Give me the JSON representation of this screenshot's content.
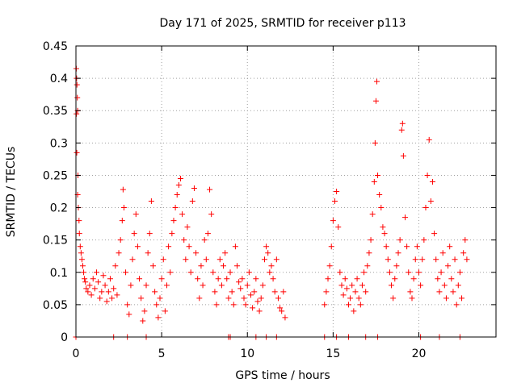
{
  "chart_data": {
    "type": "scatter",
    "title": "Day 171 of 2025, SRMTID for receiver p113",
    "xlabel": "GPS time / hours",
    "ylabel": "SRMTID / TECUs",
    "xlim": [
      0,
      24.5
    ],
    "ylim": [
      0,
      0.45
    ],
    "xticks": [
      0,
      5,
      10,
      15,
      20
    ],
    "xtick_labels": [
      "0",
      "5",
      "10",
      "15",
      "20"
    ],
    "yticks": [
      0,
      0.05,
      0.1,
      0.15,
      0.2,
      0.25,
      0.3,
      0.35,
      0.4,
      0.45
    ],
    "ytick_labels": [
      "0",
      "0.05",
      "0.1",
      "0.15",
      "0.2",
      "0.25",
      "0.3",
      "0.35",
      "0.4",
      "0.45"
    ],
    "grid": true,
    "marker": "+",
    "color": "#ff0000",
    "series": [
      {
        "name": "SRMTID",
        "points": [
          [
            0.02,
            0.415
          ],
          [
            0.04,
            0.4
          ],
          [
            0.06,
            0.39
          ],
          [
            0.08,
            0.37
          ],
          [
            0.1,
            0.35
          ],
          [
            0.03,
            0.345
          ],
          [
            0.05,
            0.285
          ],
          [
            0.12,
            0.25
          ],
          [
            0.1,
            0.22
          ],
          [
            0.14,
            0.2
          ],
          [
            0.18,
            0.18
          ],
          [
            0.2,
            0.16
          ],
          [
            0.25,
            0.14
          ],
          [
            0.3,
            0.13
          ],
          [
            0.35,
            0.12
          ],
          [
            0.4,
            0.11
          ],
          [
            0.45,
            0.1
          ],
          [
            0.5,
            0.09
          ],
          [
            0.55,
            0.085
          ],
          [
            0.6,
            0.075
          ],
          [
            0.7,
            0.07
          ],
          [
            0.8,
            0.08
          ],
          [
            0.9,
            0.065
          ],
          [
            1.0,
            0.09
          ],
          [
            1.1,
            0.075
          ],
          [
            1.2,
            0.1
          ],
          [
            1.3,
            0.085
          ],
          [
            1.4,
            0.06
          ],
          [
            1.5,
            0.07
          ],
          [
            1.6,
            0.095
          ],
          [
            1.7,
            0.08
          ],
          [
            1.8,
            0.055
          ],
          [
            1.9,
            0.07
          ],
          [
            2.0,
            0.09
          ],
          [
            2.1,
            0.06
          ],
          [
            2.2,
            0.075
          ],
          [
            2.3,
            0.11
          ],
          [
            2.4,
            0.065
          ],
          [
            2.5,
            0.13
          ],
          [
            2.6,
            0.15
          ],
          [
            2.7,
            0.18
          ],
          [
            2.75,
            0.228
          ],
          [
            2.8,
            0.2
          ],
          [
            2.9,
            0.1
          ],
          [
            3.0,
            0.05
          ],
          [
            3.1,
            0.035
          ],
          [
            3.2,
            0.08
          ],
          [
            3.3,
            0.12
          ],
          [
            3.4,
            0.16
          ],
          [
            3.5,
            0.19
          ],
          [
            3.6,
            0.14
          ],
          [
            3.7,
            0.09
          ],
          [
            3.8,
            0.06
          ],
          [
            3.9,
            0.025
          ],
          [
            4.0,
            0.04
          ],
          [
            4.1,
            0.08
          ],
          [
            4.2,
            0.13
          ],
          [
            4.3,
            0.16
          ],
          [
            4.4,
            0.21
          ],
          [
            4.5,
            0.11
          ],
          [
            4.6,
            0.07
          ],
          [
            4.7,
            0.05
          ],
          [
            4.8,
            0.03
          ],
          [
            4.9,
            0.06
          ],
          [
            5.0,
            0.09
          ],
          [
            5.1,
            0.12
          ],
          [
            5.2,
            0.04
          ],
          [
            5.3,
            0.08
          ],
          [
            5.4,
            0.14
          ],
          [
            5.5,
            0.1
          ],
          [
            5.6,
            0.16
          ],
          [
            5.7,
            0.18
          ],
          [
            5.8,
            0.2
          ],
          [
            5.9,
            0.22
          ],
          [
            6.0,
            0.235
          ],
          [
            6.1,
            0.245
          ],
          [
            6.2,
            0.19
          ],
          [
            6.3,
            0.15
          ],
          [
            6.4,
            0.12
          ],
          [
            6.5,
            0.17
          ],
          [
            6.6,
            0.14
          ],
          [
            6.7,
            0.1
          ],
          [
            6.8,
            0.21
          ],
          [
            6.9,
            0.23
          ],
          [
            7.0,
            0.13
          ],
          [
            7.1,
            0.09
          ],
          [
            7.2,
            0.06
          ],
          [
            7.3,
            0.11
          ],
          [
            7.4,
            0.08
          ],
          [
            7.5,
            0.15
          ],
          [
            7.6,
            0.12
          ],
          [
            7.7,
            0.16
          ],
          [
            7.8,
            0.228
          ],
          [
            7.9,
            0.19
          ],
          [
            8.0,
            0.1
          ],
          [
            8.1,
            0.07
          ],
          [
            8.2,
            0.05
          ],
          [
            8.3,
            0.09
          ],
          [
            8.4,
            0.12
          ],
          [
            8.5,
            0.08
          ],
          [
            8.6,
            0.11
          ],
          [
            8.7,
            0.13
          ],
          [
            8.8,
            0.09
          ],
          [
            8.9,
            0.06
          ],
          [
            9.0,
            0.1
          ],
          [
            9.1,
            0.07
          ],
          [
            9.2,
            0.05
          ],
          [
            9.3,
            0.14
          ],
          [
            9.4,
            0.11
          ],
          [
            9.5,
            0.085
          ],
          [
            9.6,
            0.075
          ],
          [
            9.7,
            0.09
          ],
          [
            9.8,
            0.06
          ],
          [
            9.9,
            0.05
          ],
          [
            10.0,
            0.08
          ],
          [
            10.1,
            0.1
          ],
          [
            10.2,
            0.065
          ],
          [
            10.3,
            0.045
          ],
          [
            10.4,
            0.07
          ],
          [
            10.5,
            0.09
          ],
          [
            10.6,
            0.055
          ],
          [
            10.7,
            0.04
          ],
          [
            10.8,
            0.06
          ],
          [
            10.9,
            0.08
          ],
          [
            11.0,
            0.12
          ],
          [
            11.1,
            0.14
          ],
          [
            11.2,
            0.13
          ],
          [
            11.3,
            0.1
          ],
          [
            11.4,
            0.11
          ],
          [
            11.5,
            0.09
          ],
          [
            11.6,
            0.07
          ],
          [
            11.7,
            0.12
          ],
          [
            11.8,
            0.06
          ],
          [
            11.9,
            0.045
          ],
          [
            12.0,
            0.04
          ],
          [
            12.1,
            0.07
          ],
          [
            12.2,
            0.03
          ],
          [
            14.5,
            0.05
          ],
          [
            14.6,
            0.07
          ],
          [
            14.7,
            0.09
          ],
          [
            14.8,
            0.11
          ],
          [
            14.9,
            0.14
          ],
          [
            15.0,
            0.18
          ],
          [
            15.1,
            0.21
          ],
          [
            15.2,
            0.225
          ],
          [
            15.3,
            0.17
          ],
          [
            15.4,
            0.1
          ],
          [
            15.5,
            0.08
          ],
          [
            15.6,
            0.065
          ],
          [
            15.7,
            0.09
          ],
          [
            15.8,
            0.075
          ],
          [
            15.9,
            0.05
          ],
          [
            16.0,
            0.06
          ],
          [
            16.1,
            0.08
          ],
          [
            16.2,
            0.04
          ],
          [
            16.3,
            0.07
          ],
          [
            16.4,
            0.09
          ],
          [
            16.5,
            0.06
          ],
          [
            16.6,
            0.05
          ],
          [
            16.7,
            0.08
          ],
          [
            16.8,
            0.1
          ],
          [
            16.9,
            0.07
          ],
          [
            17.0,
            0.11
          ],
          [
            17.1,
            0.13
          ],
          [
            17.2,
            0.15
          ],
          [
            17.3,
            0.19
          ],
          [
            17.4,
            0.24
          ],
          [
            17.45,
            0.3
          ],
          [
            17.5,
            0.365
          ],
          [
            17.55,
            0.395
          ],
          [
            17.6,
            0.25
          ],
          [
            17.7,
            0.22
          ],
          [
            17.8,
            0.2
          ],
          [
            17.9,
            0.17
          ],
          [
            18.0,
            0.16
          ],
          [
            18.1,
            0.14
          ],
          [
            18.2,
            0.12
          ],
          [
            18.3,
            0.1
          ],
          [
            18.4,
            0.08
          ],
          [
            18.5,
            0.06
          ],
          [
            18.6,
            0.09
          ],
          [
            18.7,
            0.11
          ],
          [
            18.8,
            0.13
          ],
          [
            18.9,
            0.15
          ],
          [
            19.0,
            0.32
          ],
          [
            19.05,
            0.33
          ],
          [
            19.1,
            0.28
          ],
          [
            19.2,
            0.185
          ],
          [
            19.3,
            0.14
          ],
          [
            19.4,
            0.1
          ],
          [
            19.5,
            0.07
          ],
          [
            19.6,
            0.06
          ],
          [
            19.7,
            0.09
          ],
          [
            19.8,
            0.12
          ],
          [
            19.9,
            0.14
          ],
          [
            20.0,
            0.1
          ],
          [
            20.1,
            0.08
          ],
          [
            20.2,
            0.12
          ],
          [
            20.3,
            0.15
          ],
          [
            20.4,
            0.2
          ],
          [
            20.5,
            0.25
          ],
          [
            20.6,
            0.305
          ],
          [
            20.7,
            0.21
          ],
          [
            20.8,
            0.24
          ],
          [
            20.9,
            0.16
          ],
          [
            21.0,
            0.12
          ],
          [
            21.1,
            0.09
          ],
          [
            21.2,
            0.07
          ],
          [
            21.3,
            0.1
          ],
          [
            21.4,
            0.13
          ],
          [
            21.5,
            0.08
          ],
          [
            21.6,
            0.06
          ],
          [
            21.7,
            0.11
          ],
          [
            21.8,
            0.14
          ],
          [
            21.9,
            0.09
          ],
          [
            22.0,
            0.07
          ],
          [
            22.1,
            0.12
          ],
          [
            22.2,
            0.05
          ],
          [
            22.3,
            0.08
          ],
          [
            22.4,
            0.1
          ],
          [
            22.5,
            0.06
          ],
          [
            22.6,
            0.13
          ],
          [
            22.7,
            0.15
          ],
          [
            22.8,
            0.12
          ]
        ],
        "zero_points": [
          0.0,
          2.2,
          3.0,
          4.1,
          8.9,
          9.0,
          10.5,
          11.1,
          11.7,
          14.5,
          15.2,
          15.9,
          16.9,
          17.6,
          20.1,
          21.2,
          22.4
        ]
      }
    ]
  }
}
